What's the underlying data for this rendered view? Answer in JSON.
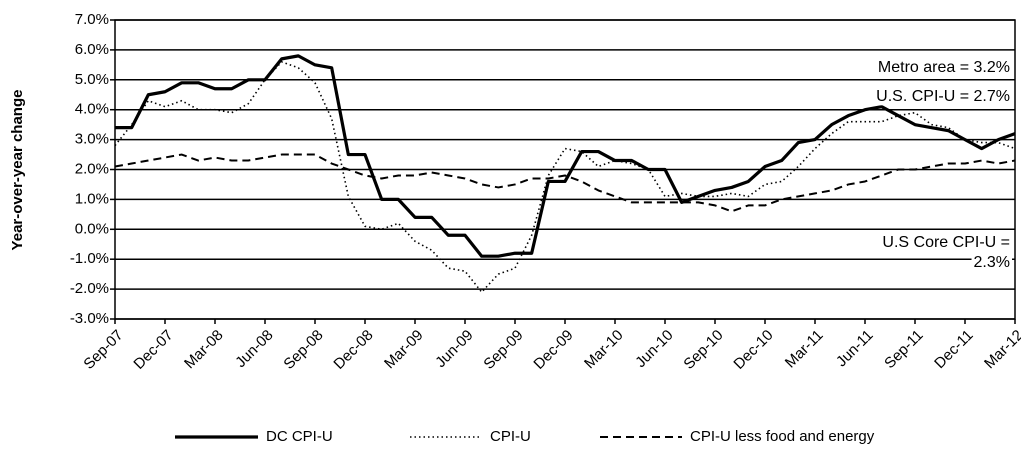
{
  "chart_data": {
    "type": "line",
    "y_label": "Year-over-year change",
    "categories": [
      "Sep-07",
      null,
      null,
      "Dec-07",
      null,
      null,
      "Mar-08",
      null,
      null,
      "Jun-08",
      null,
      null,
      "Sep-08",
      null,
      null,
      "Dec-08",
      null,
      null,
      "Mar-09",
      null,
      null,
      "Jun-09",
      null,
      null,
      "Sep-09",
      null,
      null,
      "Dec-09",
      null,
      null,
      "Mar-10",
      null,
      null,
      "Jun-10",
      null,
      null,
      "Sep-10",
      null,
      null,
      "Dec-10",
      null,
      null,
      "Mar-11",
      null,
      null,
      "Jun-11",
      null,
      null,
      "Sep-11",
      null,
      null,
      "Dec-11",
      null,
      null,
      "Mar-12"
    ],
    "series": [
      {
        "name": "DC CPI-U",
        "color": "#000000",
        "line_style": "solid",
        "values": [
          3.4,
          3.4,
          4.5,
          4.6,
          4.9,
          4.9,
          4.7,
          4.7,
          5.0,
          5.0,
          5.7,
          5.8,
          5.5,
          5.4,
          2.5,
          2.5,
          1.0,
          1.0,
          0.4,
          0.4,
          -0.2,
          -0.2,
          -0.9,
          -0.9,
          -0.8,
          -0.8,
          1.6,
          1.6,
          2.6,
          2.6,
          2.3,
          2.3,
          2.0,
          2.0,
          0.9,
          1.1,
          1.3,
          1.4,
          1.6,
          2.1,
          2.3,
          2.9,
          3.0,
          3.5,
          3.8,
          4.0,
          4.1,
          3.8,
          3.5,
          3.4,
          3.3,
          3.0,
          2.7,
          3.0,
          3.2
        ]
      },
      {
        "name": "CPI-U",
        "color": "#000000",
        "line_style": "dotted",
        "values": [
          2.8,
          3.5,
          4.3,
          4.1,
          4.3,
          4.0,
          4.0,
          3.9,
          4.2,
          5.0,
          5.6,
          5.4,
          4.9,
          3.7,
          1.1,
          0.1,
          0.0,
          0.2,
          -0.4,
          -0.7,
          -1.3,
          -1.4,
          -2.1,
          -1.5,
          -1.3,
          -0.2,
          1.8,
          2.7,
          2.6,
          2.1,
          2.3,
          2.2,
          2.0,
          1.1,
          1.2,
          1.1,
          1.1,
          1.2,
          1.1,
          1.5,
          1.6,
          2.1,
          2.7,
          3.2,
          3.6,
          3.6,
          3.6,
          3.8,
          3.9,
          3.5,
          3.4,
          3.0,
          2.9,
          2.9,
          2.7
        ]
      },
      {
        "name": "CPI-U less food and energy",
        "color": "#000000",
        "line_style": "dashed",
        "values": [
          2.1,
          2.2,
          2.3,
          2.4,
          2.5,
          2.3,
          2.4,
          2.3,
          2.3,
          2.4,
          2.5,
          2.5,
          2.5,
          2.2,
          2.0,
          1.8,
          1.7,
          1.8,
          1.8,
          1.9,
          1.8,
          1.7,
          1.5,
          1.4,
          1.5,
          1.7,
          1.7,
          1.8,
          1.6,
          1.3,
          1.1,
          0.9,
          0.9,
          0.9,
          0.9,
          0.9,
          0.8,
          0.6,
          0.8,
          0.8,
          1.0,
          1.1,
          1.2,
          1.3,
          1.5,
          1.6,
          1.8,
          2.0,
          2.0,
          2.1,
          2.2,
          2.2,
          2.3,
          2.2,
          2.3
        ]
      }
    ],
    "ylim": [
      -3,
      7
    ],
    "yticks": [
      {
        "value": -3,
        "label": "-3.0%"
      },
      {
        "value": -2,
        "label": "-2.0%"
      },
      {
        "value": -1,
        "label": "-1.0%"
      },
      {
        "value": 0,
        "label": "0.0%"
      },
      {
        "value": 1,
        "label": "1.0%"
      },
      {
        "value": 2,
        "label": "2.0%"
      },
      {
        "value": 3,
        "label": "3.0%"
      },
      {
        "value": 4,
        "label": "4.0%"
      },
      {
        "value": 5,
        "label": "5.0%"
      },
      {
        "value": 6,
        "label": "6.0%"
      },
      {
        "value": 7,
        "label": "7.0%"
      }
    ],
    "grid": true,
    "legend": "bottom",
    "annotations": [
      "Metro area = 3.2%",
      "U.S. CPI-U = 2.7%",
      "U.S Core CPI-U =",
      "2.3%"
    ]
  }
}
